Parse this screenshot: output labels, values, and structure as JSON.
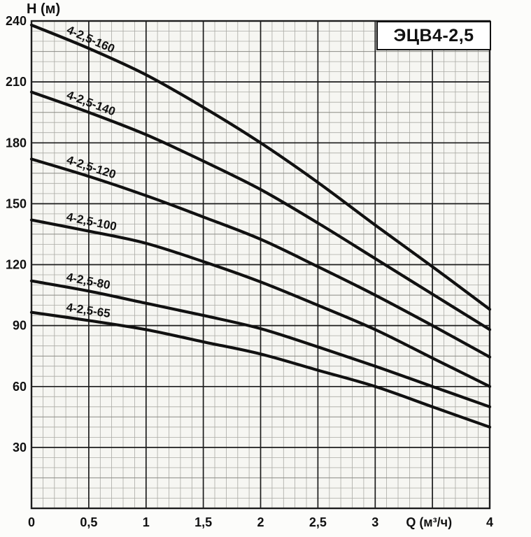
{
  "title_box": {
    "label": "ЭЦВ4-2,5"
  },
  "y_axis": {
    "title": "H (м)",
    "min": 0,
    "max": 240,
    "major_step": 30,
    "minor_step": 5,
    "medium_step": 15,
    "tick_labels": [
      30,
      60,
      90,
      120,
      150,
      180,
      210,
      240
    ]
  },
  "x_axis": {
    "title": "Q (м³/ч)",
    "min": 0,
    "max": 4,
    "major_step": 0.5,
    "minor_step": 0.1,
    "medium_step": 0.25,
    "tick_labels": [
      {
        "pos": 0,
        "text": "0"
      },
      {
        "pos": 0.5,
        "text": "0,5"
      },
      {
        "pos": 1,
        "text": "1"
      },
      {
        "pos": 1.5,
        "text": "1,5"
      },
      {
        "pos": 2,
        "text": "2"
      },
      {
        "pos": 2.5,
        "text": "2,5"
      },
      {
        "pos": 3,
        "text": "3"
      },
      {
        "pos": 3.47,
        "text": "Q (м³/ч)"
      },
      {
        "pos": 4,
        "text": "4"
      }
    ]
  },
  "chart_data": {
    "type": "line",
    "title": "ЭЦВ4-2,5",
    "xlabel": "Q (м³/ч)",
    "ylabel": "H (м)",
    "xlim": [
      0,
      4
    ],
    "ylim": [
      0,
      240
    ],
    "grid": "on",
    "x": [
      0,
      0.5,
      1,
      1.5,
      2,
      2.5,
      3,
      3.5,
      4
    ],
    "series": [
      {
        "name": "4-2,5-160",
        "values": [
          238,
          226.5,
          213.5,
          197.5,
          180,
          160.5,
          139.5,
          119,
          98
        ]
      },
      {
        "name": "4-2,5-140",
        "values": [
          205,
          195,
          184,
          171,
          157,
          140.5,
          123,
          105.5,
          88
        ]
      },
      {
        "name": "4-2,5-120",
        "values": [
          172,
          163.5,
          154,
          143.5,
          132.5,
          119,
          105,
          90,
          74.5
        ]
      },
      {
        "name": "4-2,5-100",
        "values": [
          142,
          136.5,
          130.5,
          121.5,
          111.5,
          100,
          88,
          74,
          60
        ]
      },
      {
        "name": "4-2,5-80",
        "values": [
          112,
          107,
          101,
          95,
          88.5,
          79.5,
          70,
          60,
          50
        ]
      },
      {
        "name": "4-2,5-65",
        "values": [
          96.5,
          92.5,
          88,
          82,
          76,
          68,
          60,
          50,
          40
        ]
      }
    ]
  },
  "colors": {
    "curve": "#111111",
    "grid_major": "#1c1c1c",
    "grid_medium": "#8a8a84",
    "grid_minor": "#aaaaa4",
    "plot_bg": "#f6f6f2",
    "page_bg": "#fcfcfa",
    "text": "#111111",
    "title_box_bg": "#ffffff",
    "title_box_border": "#111111"
  }
}
